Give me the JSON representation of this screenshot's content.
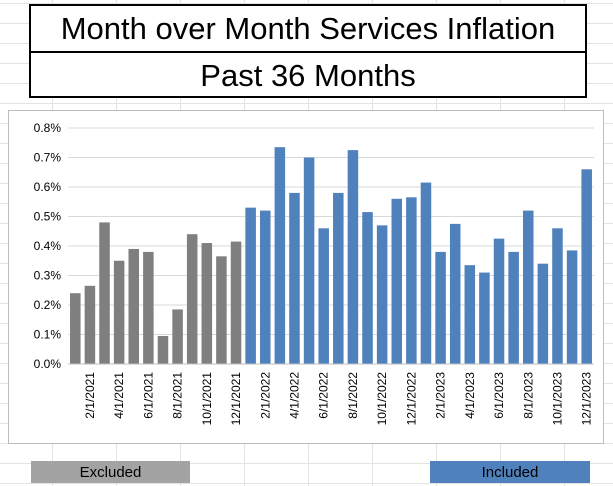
{
  "title": {
    "line1": "Month over Month Services Inflation",
    "line2": "Past 36 Months"
  },
  "legend": {
    "excluded_label": "Excluded",
    "included_label": "Included"
  },
  "colors": {
    "excluded": "#7f7f7f",
    "included": "#4f81bd",
    "excluded_legend": "#a3a3a3"
  },
  "chart_data": {
    "type": "bar",
    "title": "Month over Month Services Inflation",
    "subtitle": "Past 36 Months",
    "xlabel": "",
    "ylabel": "",
    "ylim": [
      0,
      0.8
    ],
    "yticks": [
      "0.0%",
      "0.1%",
      "0.2%",
      "0.3%",
      "0.4%",
      "0.5%",
      "0.6%",
      "0.7%",
      "0.8%"
    ],
    "grid": true,
    "categories": [
      "1/1/2021",
      "2/1/2021",
      "3/1/2021",
      "4/1/2021",
      "5/1/2021",
      "6/1/2021",
      "7/1/2021",
      "8/1/2021",
      "9/1/2021",
      "10/1/2021",
      "11/1/2021",
      "12/1/2021",
      "1/1/2022",
      "2/1/2022",
      "3/1/2022",
      "4/1/2022",
      "5/1/2022",
      "6/1/2022",
      "7/1/2022",
      "8/1/2022",
      "9/1/2022",
      "10/1/2022",
      "11/1/2022",
      "12/1/2022",
      "1/1/2023",
      "2/1/2023",
      "3/1/2023",
      "4/1/2023",
      "5/1/2023",
      "6/1/2023",
      "7/1/2023",
      "8/1/2023",
      "9/1/2023",
      "10/1/2023",
      "11/1/2023",
      "12/1/2023"
    ],
    "visible_tick_labels": [
      "2/1/2021",
      "4/1/2021",
      "6/1/2021",
      "8/1/2021",
      "10/1/2021",
      "12/1/2021",
      "2/1/2022",
      "4/1/2022",
      "6/1/2022",
      "8/1/2022",
      "10/1/2022",
      "12/1/2022",
      "2/1/2023",
      "4/1/2023",
      "6/1/2023",
      "8/1/2023",
      "10/1/2023",
      "12/1/2023"
    ],
    "values": [
      0.24,
      0.265,
      0.48,
      0.35,
      0.39,
      0.38,
      0.095,
      0.185,
      0.44,
      0.41,
      0.365,
      0.415,
      0.53,
      0.52,
      0.735,
      0.58,
      0.7,
      0.46,
      0.58,
      0.725,
      0.515,
      0.47,
      0.56,
      0.565,
      0.615,
      0.38,
      0.475,
      0.335,
      0.31,
      0.425,
      0.38,
      0.52,
      0.34,
      0.46,
      0.385,
      0.66
    ],
    "groups": [
      {
        "name": "Excluded",
        "start": 0,
        "end": 11
      },
      {
        "name": "Included",
        "start": 12,
        "end": 35
      }
    ]
  }
}
